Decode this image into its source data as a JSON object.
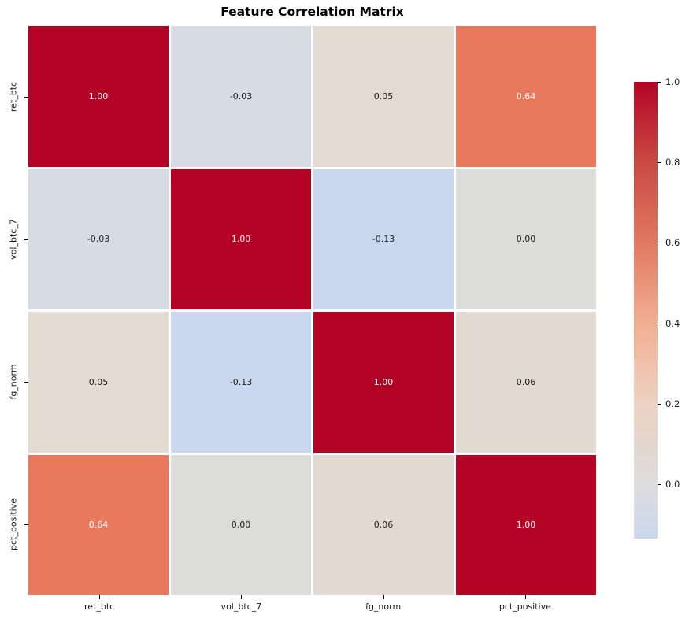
{
  "chart_data": {
    "type": "heatmap",
    "title": "Feature Correlation Matrix",
    "categories": [
      "ret_btc",
      "vol_btc_7",
      "fg_norm",
      "pct_positive"
    ],
    "matrix": [
      [
        1.0,
        -0.03,
        0.05,
        0.64
      ],
      [
        -0.03,
        1.0,
        -0.13,
        0.0
      ],
      [
        0.05,
        -0.13,
        1.0,
        0.06
      ],
      [
        0.64,
        0.0,
        0.06,
        1.0
      ]
    ],
    "cell_labels": [
      [
        "1.00",
        "-0.03",
        "0.05",
        "0.64"
      ],
      [
        "-0.03",
        "1.00",
        "-0.13",
        "0.00"
      ],
      [
        "0.05",
        "-0.13",
        "1.00",
        "0.06"
      ],
      [
        "0.64",
        "0.00",
        "0.06",
        "1.00"
      ]
    ],
    "cell_colors": [
      [
        "#b40426",
        "#d7dbe4",
        "#e3dad2",
        "#e8795d"
      ],
      [
        "#d7dbe4",
        "#b40426",
        "#c9d8ee",
        "#dcdcda"
      ],
      [
        "#e3dad2",
        "#c9d8ee",
        "#b40426",
        "#e2d9d1"
      ],
      [
        "#e8795d",
        "#dcdcda",
        "#e2d9d1",
        "#b40426"
      ]
    ],
    "cell_text_colors": [
      [
        "#ffffff",
        "#1a1a1a",
        "#1a1a1a",
        "#ffffff"
      ],
      [
        "#1a1a1a",
        "#ffffff",
        "#1a1a1a",
        "#1a1a1a"
      ],
      [
        "#1a1a1a",
        "#1a1a1a",
        "#ffffff",
        "#1a1a1a"
      ],
      [
        "#ffffff",
        "#1a1a1a",
        "#1a1a1a",
        "#ffffff"
      ]
    ],
    "colormap": "coolwarm",
    "grid": false,
    "legend_position": "right-colorbar",
    "colorbar": {
      "range": [
        -0.135,
        1.0
      ],
      "tick_labels": [
        "1.0",
        "0.8",
        "0.6",
        "0.4",
        "0.2",
        "0.0"
      ],
      "tick_values": [
        1.0,
        0.8,
        0.6,
        0.4,
        0.2,
        0.0
      ],
      "gradient_stops": [
        {
          "pos": 0.0,
          "color": "#b40426"
        },
        {
          "pos": 0.176,
          "color": "#c94a41"
        },
        {
          "pos": 0.352,
          "color": "#e17862"
        },
        {
          "pos": 0.529,
          "color": "#f2af91"
        },
        {
          "pos": 0.705,
          "color": "#ecd2c3"
        },
        {
          "pos": 0.881,
          "color": "#dcdcdc"
        },
        {
          "pos": 0.95,
          "color": "#d3dae7"
        },
        {
          "pos": 1.0,
          "color": "#c9d7ed"
        }
      ]
    }
  }
}
